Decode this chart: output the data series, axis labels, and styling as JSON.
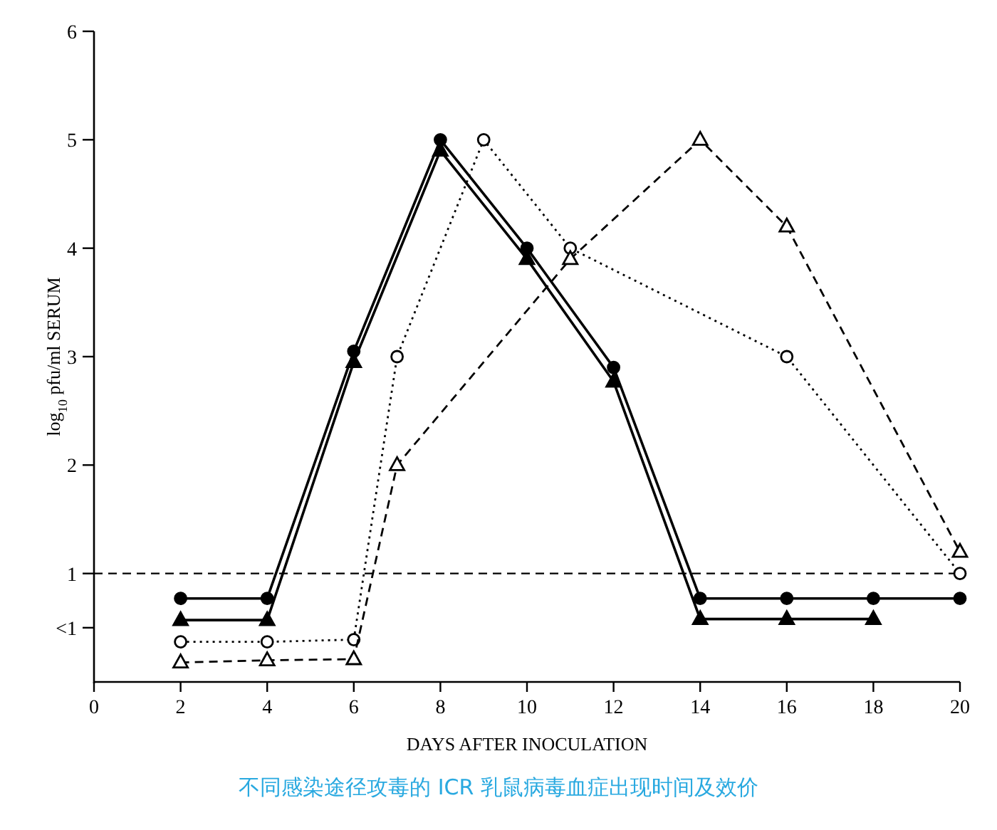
{
  "chart_data": {
    "type": "line",
    "xlabel": "DAYS AFTER INOCULATION",
    "ylabel": "log$_{10}$ pfu/ml SERUM",
    "xlim": [
      0,
      20
    ],
    "xticks": [
      0,
      2,
      4,
      6,
      8,
      10,
      12,
      14,
      16,
      18,
      20
    ],
    "ylim": [
      0,
      6
    ],
    "yticks": [
      {
        "value": 0.5,
        "label": "<1"
      },
      1,
      2,
      3,
      4,
      5,
      6
    ],
    "series": [
      {
        "color": "#000000",
        "marker": "circle",
        "line_style": "solid",
        "x": [
          2,
          4,
          6,
          8,
          10,
          12,
          14,
          16,
          18,
          20
        ],
        "values": [
          0.77,
          0.77,
          3.05,
          5.0,
          4.0,
          2.9,
          0.77,
          0.77,
          0.77,
          0.77
        ]
      },
      {
        "color": "#000000",
        "marker": "triangle",
        "line_style": "solid",
        "x": [
          2,
          4,
          6,
          8,
          10,
          12,
          14,
          16,
          18
        ],
        "values": [
          0.57,
          0.57,
          2.95,
          4.9,
          3.9,
          2.77,
          0.58,
          0.58,
          0.58
        ]
      },
      {
        "color": "#000000",
        "marker": "circle",
        "line_style": "dotted",
        "x": [
          2,
          4,
          6,
          7,
          9,
          11,
          16,
          20
        ],
        "values": [
          0.37,
          0.37,
          0.39,
          3.0,
          5.0,
          4.0,
          3.0,
          1.0
        ]
      },
      {
        "color": "#000000",
        "marker": "triangle",
        "line_style": "dashed",
        "x": [
          2,
          4,
          6,
          7,
          11,
          14,
          16,
          20
        ],
        "values": [
          0.18,
          0.2,
          0.21,
          2.0,
          3.9,
          5.0,
          4.2,
          1.2
        ]
      }
    ],
    "ref_lines": [
      {
        "axis": "y",
        "value": 1,
        "line_style": "dashed",
        "color": "#000000"
      }
    ],
    "annotations": [
      "不同感染途径攻毒的 ICR 乳鼠病毒血症出现时间及效价"
    ]
  }
}
